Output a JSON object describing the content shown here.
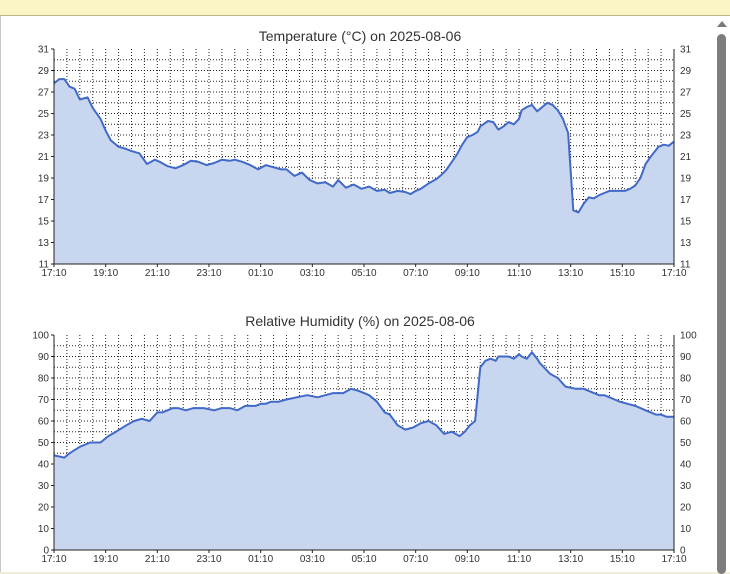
{
  "chart_data": [
    {
      "type": "area",
      "title": "Temperature (°C) on 2025-08-06",
      "x_tick_labels": [
        "17:10",
        "19:10",
        "21:10",
        "23:10",
        "01:10",
        "03:10",
        "05:10",
        "07:10",
        "09:10",
        "11:10",
        "13:10",
        "15:10",
        "17:10"
      ],
      "yticks": [
        11,
        13,
        15,
        17,
        19,
        21,
        23,
        25,
        27,
        29,
        31
      ],
      "ylim": [
        11,
        31
      ],
      "grid": true,
      "x_hours": [
        0,
        0.2,
        0.4,
        0.6,
        0.8,
        1.0,
        1.3,
        1.5,
        1.8,
        2.0,
        2.2,
        2.5,
        2.8,
        3.0,
        3.3,
        3.6,
        3.9,
        4.1,
        4.4,
        4.7,
        5.0,
        5.3,
        5.6,
        5.9,
        6.2,
        6.5,
        6.8,
        7.0,
        7.3,
        7.6,
        7.9,
        8.2,
        8.5,
        8.8,
        9.0,
        9.3,
        9.6,
        9.9,
        10.2,
        10.5,
        10.8,
        11.0,
        11.3,
        11.6,
        11.9,
        12.2,
        12.5,
        12.8,
        13.0,
        13.3,
        13.6,
        13.8,
        14.0,
        14.2,
        14.5,
        14.8,
        15.0,
        15.2,
        15.4,
        15.6,
        15.8,
        16.0,
        16.2,
        16.4,
        16.5,
        16.8,
        17.0,
        17.2,
        17.4,
        17.6,
        17.8,
        18.0,
        18.1,
        18.3,
        18.5,
        18.7,
        18.9,
        19.1,
        19.3,
        19.5,
        19.7,
        19.9,
        20.1,
        20.3,
        20.5,
        20.7,
        20.9,
        21.1,
        21.3,
        21.5,
        21.7,
        21.9,
        22.1,
        22.3,
        22.5,
        22.7,
        22.9,
        23.1,
        23.4,
        23.6,
        23.8,
        24.0
      ],
      "values": [
        27.8,
        28.2,
        28.2,
        27.5,
        27.3,
        26.3,
        26.5,
        25.5,
        24.5,
        23.4,
        22.5,
        21.9,
        21.7,
        21.5,
        21.3,
        20.3,
        20.7,
        20.5,
        20.1,
        19.9,
        20.2,
        20.6,
        20.5,
        20.2,
        20.4,
        20.7,
        20.6,
        20.7,
        20.5,
        20.2,
        19.8,
        20.2,
        20.0,
        19.8,
        19.8,
        19.2,
        19.5,
        18.8,
        18.5,
        18.6,
        18.2,
        18.8,
        18.1,
        18.4,
        18.0,
        18.2,
        17.8,
        17.9,
        17.6,
        17.8,
        17.7,
        17.5,
        17.8,
        18.0,
        18.5,
        18.9,
        19.3,
        19.8,
        20.5,
        21.2,
        22.1,
        22.8,
        23.0,
        23.3,
        23.8,
        24.3,
        24.2,
        23.5,
        23.8,
        24.2,
        24.0,
        24.5,
        25.3,
        25.6,
        25.8,
        25.2,
        25.6,
        26.0,
        25.8,
        25.3,
        24.5,
        23.2,
        16.0,
        15.8,
        16.6,
        17.2,
        17.1,
        17.4,
        17.6,
        17.8,
        17.8,
        17.8,
        17.8,
        18.0,
        18.3,
        19.0,
        20.3,
        21.0,
        21.9,
        22.1,
        22.0,
        22.4
      ]
    },
    {
      "type": "area",
      "title": "Relative Humidity (%) on 2025-08-06",
      "x_tick_labels": [
        "17:10",
        "19:10",
        "21:10",
        "23:10",
        "01:10",
        "03:10",
        "05:10",
        "07:10",
        "09:10",
        "11:10",
        "13:10",
        "15:10",
        "17:10"
      ],
      "yticks": [
        0,
        10,
        20,
        30,
        40,
        50,
        60,
        70,
        80,
        90,
        100
      ],
      "ylim": [
        0,
        100
      ],
      "grid": true,
      "x_hours": [
        0,
        0.4,
        0.6,
        1.0,
        1.4,
        1.8,
        2.1,
        2.4,
        2.8,
        3.1,
        3.4,
        3.7,
        4.0,
        4.2,
        4.6,
        4.8,
        5.1,
        5.4,
        5.8,
        6.2,
        6.5,
        6.8,
        7.1,
        7.4,
        7.8,
        8.0,
        8.2,
        8.4,
        8.7,
        9.0,
        9.4,
        9.8,
        10.2,
        10.5,
        10.8,
        11.2,
        11.5,
        11.8,
        12.2,
        12.5,
        12.8,
        13.0,
        13.3,
        13.6,
        13.9,
        14.2,
        14.5,
        14.8,
        15.1,
        15.4,
        15.7,
        15.9,
        16.1,
        16.3,
        16.5,
        16.7,
        16.9,
        17.1,
        17.2,
        17.4,
        17.6,
        17.8,
        18.0,
        18.1,
        18.3,
        18.5,
        18.7,
        18.8,
        19.2,
        19.5,
        19.8,
        20.2,
        20.5,
        20.7,
        20.9,
        21.1,
        21.3,
        21.5,
        21.7,
        21.9,
        22.2,
        22.5,
        22.7,
        22.9,
        23.1,
        23.3,
        23.5,
        23.7,
        24.0
      ],
      "values": [
        44,
        43,
        45,
        48,
        50,
        50,
        53,
        55,
        58,
        60,
        61,
        60,
        64,
        64,
        66,
        66,
        65,
        66,
        66,
        65,
        66,
        66,
        65,
        67,
        67,
        68,
        68,
        69,
        69,
        70,
        71,
        72,
        71,
        72,
        73,
        73,
        75,
        74,
        72,
        69,
        64,
        63,
        58,
        56,
        57,
        59,
        60,
        58,
        54,
        55,
        53,
        55,
        58,
        60,
        85,
        88,
        89,
        88,
        90,
        90,
        90,
        89,
        91,
        90,
        89,
        92,
        89,
        87,
        82,
        80,
        76,
        75,
        75,
        74,
        73,
        72,
        72,
        71,
        70,
        69,
        68,
        67,
        66,
        65,
        64,
        63,
        63,
        62,
        62
      ]
    }
  ]
}
